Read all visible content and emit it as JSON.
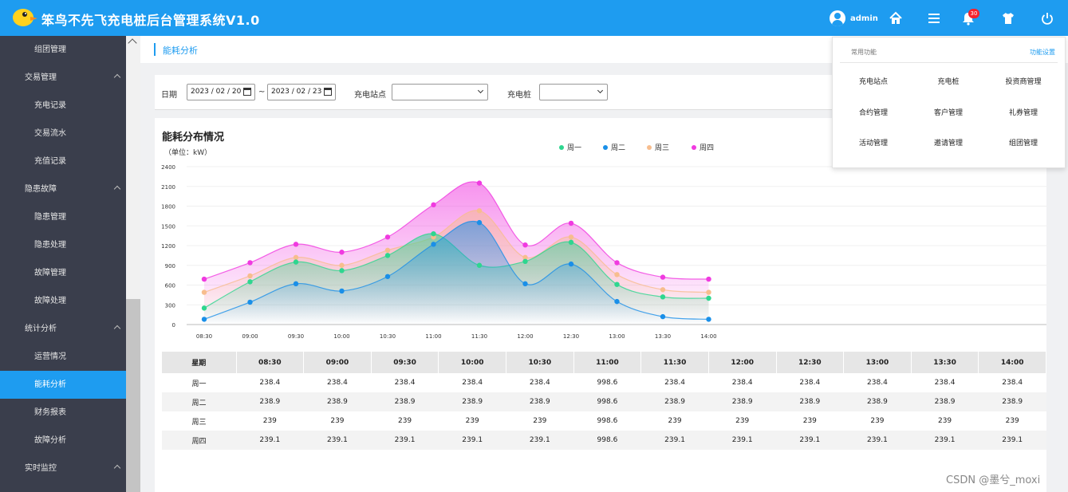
{
  "header": {
    "title": "笨鸟不先飞充电桩后台管理系统V1.0",
    "username": "admin",
    "notification_count": "30"
  },
  "sidebar": {
    "items": [
      {
        "label": "组团管理",
        "type": "sub"
      },
      {
        "label": "交易管理",
        "type": "group"
      },
      {
        "label": "充电记录",
        "type": "sub"
      },
      {
        "label": "交易流水",
        "type": "sub"
      },
      {
        "label": "充值记录",
        "type": "sub"
      },
      {
        "label": "隐患故障",
        "type": "group"
      },
      {
        "label": "隐患管理",
        "type": "sub"
      },
      {
        "label": "隐患处理",
        "type": "sub"
      },
      {
        "label": "故障管理",
        "type": "sub"
      },
      {
        "label": "故障处理",
        "type": "sub"
      },
      {
        "label": "统计分析",
        "type": "group"
      },
      {
        "label": "运营情况",
        "type": "sub"
      },
      {
        "label": "能耗分析",
        "type": "sub",
        "active": true
      },
      {
        "label": "财务报表",
        "type": "sub"
      },
      {
        "label": "故障分析",
        "type": "sub"
      },
      {
        "label": "实时监控",
        "type": "group"
      }
    ]
  },
  "breadcrumb": {
    "current": "能耗分析"
  },
  "filter": {
    "date_label": "日期",
    "date_start": "2023 / 02 / 20",
    "date_sep": "~",
    "date_end": "2023 / 02 / 23",
    "station_label": "充电站点",
    "station_value": "",
    "pile_label": "充电桩",
    "pile_value": ""
  },
  "chart_data": {
    "type": "area",
    "title": "能耗分布情况",
    "unit": "（单位：kW）",
    "x": [
      "08:30",
      "09:00",
      "09:30",
      "10:00",
      "10:30",
      "11:00",
      "11:30",
      "12:00",
      "12:30",
      "13:00",
      "13:30",
      "14:00"
    ],
    "yticks": [
      0,
      300,
      600,
      900,
      1200,
      1500,
      1800,
      2100,
      2400
    ],
    "ylim": [
      0,
      2400
    ],
    "legend_position": "top-center",
    "series": [
      {
        "name": "周一",
        "color": "#2ed68f",
        "values": [
          250,
          650,
          950,
          820,
          1050,
          1380,
          900,
          960,
          1250,
          610,
          420,
          400
        ]
      },
      {
        "name": "周二",
        "color": "#1a8fe8",
        "values": [
          80,
          340,
          620,
          510,
          730,
          1220,
          1550,
          620,
          920,
          350,
          120,
          80
        ]
      },
      {
        "name": "周三",
        "color": "#f7bd8e",
        "values": [
          490,
          740,
          1020,
          900,
          1130,
          1330,
          1730,
          1020,
          1330,
          760,
          530,
          490
        ]
      },
      {
        "name": "周四",
        "color": "#f03ae0",
        "values": [
          690,
          940,
          1220,
          1100,
          1330,
          1820,
          2150,
          1210,
          1540,
          940,
          720,
          690
        ]
      }
    ]
  },
  "table": {
    "header": [
      "星期",
      "08:30",
      "09:00",
      "09:30",
      "10:00",
      "10:30",
      "11:00",
      "11:30",
      "12:00",
      "12:30",
      "13:00",
      "13:30",
      "14:00"
    ],
    "rows": [
      [
        "周一",
        "238.4",
        "238.4",
        "238.4",
        "238.4",
        "238.4",
        "998.6",
        "238.4",
        "238.4",
        "238.4",
        "238.4",
        "238.4",
        "238.4"
      ],
      [
        "周二",
        "238.9",
        "238.9",
        "238.9",
        "238.9",
        "238.9",
        "998.6",
        "238.9",
        "238.9",
        "238.9",
        "238.9",
        "238.9",
        "238.9"
      ],
      [
        "周三",
        "239",
        "239",
        "239",
        "239",
        "239",
        "998.6",
        "239",
        "239",
        "239",
        "239",
        "239",
        "239"
      ],
      [
        "周四",
        "239.1",
        "239.1",
        "239.1",
        "239.1",
        "239.1",
        "998.6",
        "239.1",
        "239.1",
        "239.1",
        "239.1",
        "239.1",
        "239.1"
      ]
    ]
  },
  "dropdown": {
    "heading": "常用功能",
    "settings_link": "功能设置",
    "items": [
      "充电站点",
      "充电桩",
      "投资商管理",
      "合约管理",
      "客户管理",
      "礼券管理",
      "活动管理",
      "邀请管理",
      "组团管理"
    ]
  },
  "watermark": "CSDN @墨兮_moxi"
}
